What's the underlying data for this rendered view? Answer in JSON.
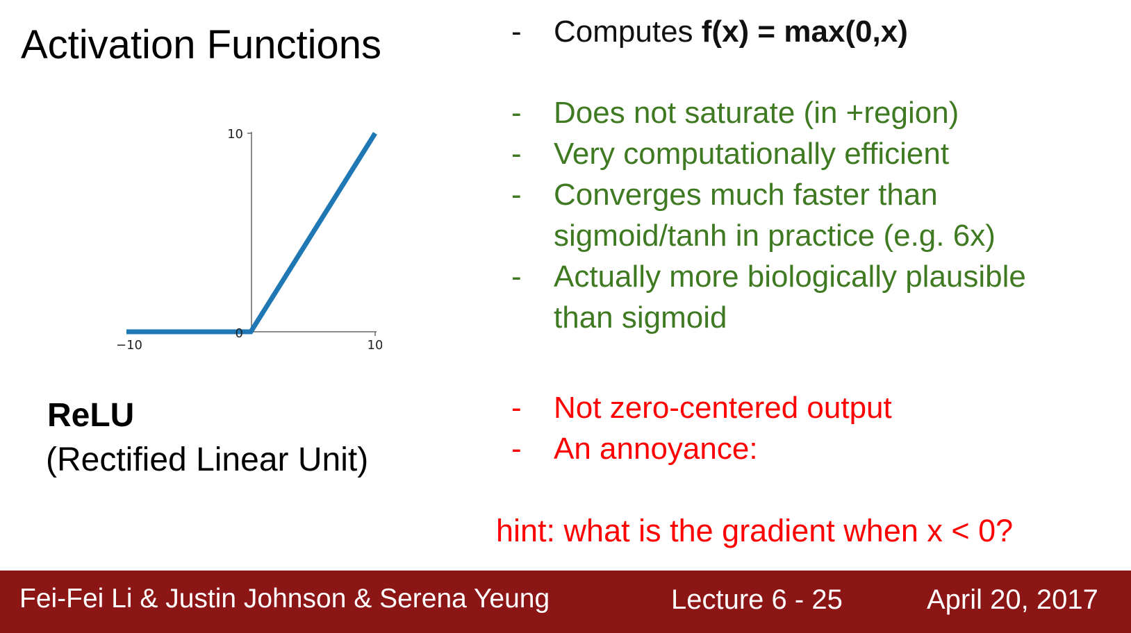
{
  "title": "Activation Functions",
  "chart_data": {
    "type": "line",
    "title": "",
    "xlabel": "",
    "ylabel": "",
    "x": [
      -10,
      0,
      10
    ],
    "y": [
      0,
      0,
      10
    ],
    "xlim": [
      -10,
      10
    ],
    "ylim": [
      0,
      10
    ],
    "x_ticks": [
      "−10",
      "10"
    ],
    "y_ticks": [
      "10",
      "0"
    ],
    "line_color": "#1f77b4"
  },
  "function": {
    "name": "ReLU",
    "full_name": "(Rectified Linear Unit)"
  },
  "bullets": {
    "dash": "-",
    "formula_prefix": "Computes ",
    "formula": "f(x) = max(0,x)",
    "pros": [
      "Does not saturate (in +region)",
      "Very computationally efficient",
      "Converges much faster than",
      "sigmoid/tanh in practice (e.g. 6x)",
      "Actually more biologically plausible",
      "than sigmoid"
    ],
    "cons": [
      "Not zero-centered output",
      "An annoyance:"
    ]
  },
  "hint": "hint: what is the gradient when x < 0?",
  "footer": {
    "authors": "Fei-Fei Li & Justin Johnson & Serena Yeung",
    "lecture": "Lecture 6 - 25",
    "date": "April 20, 2017"
  },
  "colors": {
    "green": "#3f7a22",
    "red": "#ff0000",
    "footer_bg": "#8c1515"
  }
}
